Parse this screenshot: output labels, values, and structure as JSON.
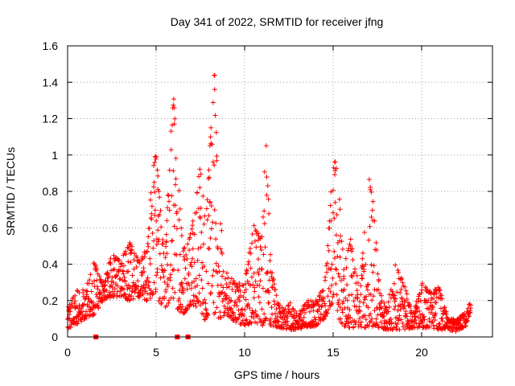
{
  "chart_data": {
    "type": "scatter",
    "title": "Day 341 of 2022, SRMTID for receiver jfng",
    "xlabel": "GPS time / hours",
    "ylabel": "SRMTID / TECUs",
    "xlim": [
      0,
      24
    ],
    "ylim": [
      0,
      1.6
    ],
    "xticks": [
      0,
      5,
      10,
      15,
      20
    ],
    "xtick_labels": [
      "0",
      "5",
      "10",
      "15",
      "20"
    ],
    "yticks": [
      0,
      0.2,
      0.4,
      0.6,
      0.8,
      1,
      1.2,
      1.4,
      1.6
    ],
    "ytick_labels": [
      "0",
      "0.2",
      "0.4",
      "0.6",
      "0.8",
      "1",
      "1.2",
      "1.4",
      "1.6"
    ],
    "grid": true,
    "marker": "plus",
    "color": "#ff0000",
    "series": [
      {
        "name": "SRMTID",
        "envelope_x": [
          0.0,
          0.5,
          1.0,
          1.5,
          2.0,
          2.5,
          3.0,
          3.5,
          4.0,
          4.5,
          4.8,
          5.0,
          5.5,
          5.8,
          6.0,
          6.5,
          7.0,
          7.5,
          7.8,
          8.0,
          8.3,
          8.5,
          9.0,
          9.5,
          10.0,
          10.5,
          11.0,
          11.2,
          11.5,
          12.0,
          12.5,
          13.0,
          13.5,
          14.0,
          14.5,
          14.8,
          15.0,
          15.3,
          15.6,
          16.0,
          16.5,
          17.0,
          17.3,
          17.6,
          18.0,
          18.5,
          19.0,
          19.5,
          20.0,
          20.5,
          21.0,
          21.5,
          22.0,
          22.5,
          22.8
        ],
        "envelope_low": [
          0.04,
          0.07,
          0.1,
          0.12,
          0.2,
          0.22,
          0.22,
          0.2,
          0.22,
          0.2,
          0.22,
          0.22,
          0.15,
          0.2,
          0.18,
          0.12,
          0.18,
          0.15,
          0.08,
          0.15,
          0.12,
          0.1,
          0.12,
          0.08,
          0.06,
          0.08,
          0.06,
          0.1,
          0.06,
          0.05,
          0.04,
          0.04,
          0.05,
          0.06,
          0.1,
          0.15,
          0.2,
          0.1,
          0.06,
          0.05,
          0.05,
          0.05,
          0.06,
          0.05,
          0.04,
          0.04,
          0.04,
          0.05,
          0.05,
          0.05,
          0.04,
          0.03,
          0.03,
          0.06,
          0.15
        ],
        "envelope_high": [
          0.16,
          0.26,
          0.26,
          0.42,
          0.3,
          0.46,
          0.42,
          0.52,
          0.44,
          0.48,
          0.95,
          1.01,
          0.4,
          1.1,
          1.33,
          0.48,
          0.58,
          0.95,
          0.6,
          1.0,
          1.5,
          0.75,
          0.36,
          0.3,
          0.3,
          0.62,
          0.55,
          1.1,
          0.38,
          0.15,
          0.2,
          0.12,
          0.2,
          0.2,
          0.28,
          0.65,
          1.05,
          0.85,
          0.4,
          0.55,
          0.25,
          0.9,
          0.72,
          0.3,
          0.15,
          0.4,
          0.3,
          0.12,
          0.3,
          0.25,
          0.28,
          0.1,
          0.1,
          0.15,
          0.22
        ]
      }
    ],
    "zero_markers_x": [
      1.6,
      6.2,
      6.8
    ]
  }
}
